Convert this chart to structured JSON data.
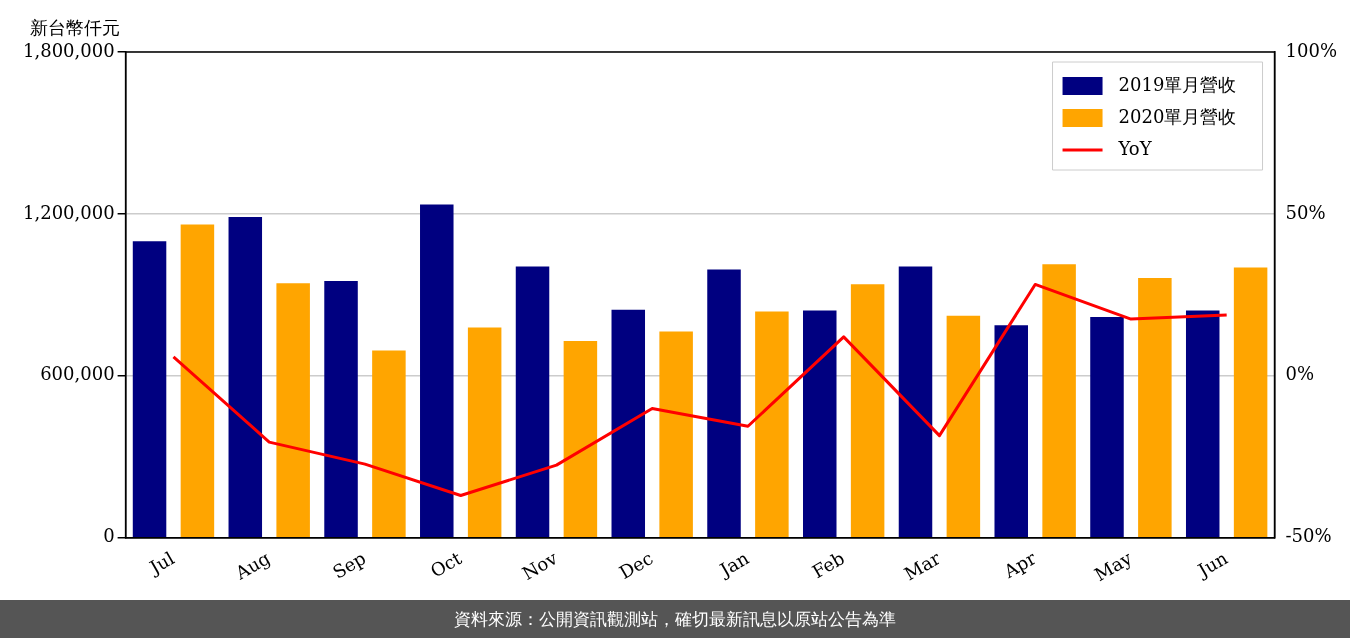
{
  "chart_data": {
    "type": "bar",
    "ylabel": "新台幣仟元",
    "categories": [
      "Jul",
      "Aug",
      "Sep",
      "Oct",
      "Nov",
      "Dec",
      "Jan",
      "Feb",
      "Mar",
      "Apr",
      "May",
      "Jun"
    ],
    "series": [
      {
        "name": "2019單月營收",
        "color": "#000080",
        "values": [
          1099000,
          1188000,
          951000,
          1235000,
          1005000,
          845000,
          994000,
          842000,
          1005000,
          787000,
          818000,
          842000
        ]
      },
      {
        "name": "2020單月營收",
        "color": "#ffa500",
        "values": [
          1161000,
          943000,
          694000,
          779000,
          729000,
          764000,
          838000,
          939000,
          822000,
          1013000,
          962000,
          1001000
        ]
      },
      {
        "name": "YoY",
        "type": "line",
        "axis": "y2",
        "color": "#ff0000",
        "values": [
          5.8,
          -20.5,
          -27.3,
          -37.0,
          -27.6,
          -10.1,
          -15.6,
          12.0,
          -18.5,
          28.2,
          17.5,
          18.8
        ]
      }
    ],
    "ylim": [
      0,
      1800000
    ],
    "yticks": [
      {
        "value": 0,
        "label": "0"
      },
      {
        "value": 600000,
        "label": "600,000"
      },
      {
        "value": 1200000,
        "label": "1,200,000"
      },
      {
        "value": 1800000,
        "label": "1,800,000"
      }
    ],
    "y2lim": [
      -50,
      100
    ],
    "y2ticks": [
      {
        "value": -50,
        "label": "-50%"
      },
      {
        "value": 0,
        "label": "0%"
      },
      {
        "value": 50,
        "label": "50%"
      },
      {
        "value": 100,
        "label": "100%"
      }
    ],
    "grid": "y",
    "legend": "top right",
    "marker": "none",
    "line_style": "solid",
    "annotations": [
      "資料來源：公開資訊觀測站，確切最新訊息以原站公告為準"
    ]
  }
}
